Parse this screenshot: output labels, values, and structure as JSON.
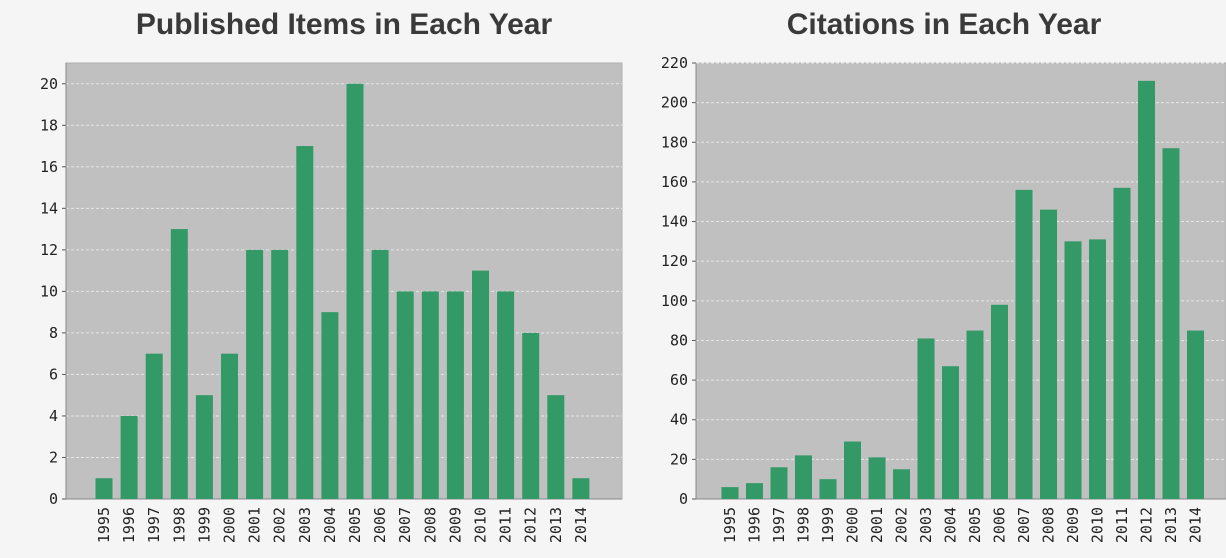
{
  "chart_data": [
    {
      "type": "bar",
      "title": "Published Items in Each Year",
      "xlabel": "",
      "ylabel": "",
      "categories": [
        "1995",
        "1996",
        "1997",
        "1998",
        "1999",
        "2000",
        "2001",
        "2002",
        "2003",
        "2004",
        "2005",
        "2006",
        "2007",
        "2008",
        "2009",
        "2010",
        "2011",
        "2012",
        "2013",
        "2014"
      ],
      "values": [
        1,
        4,
        7,
        13,
        5,
        7,
        12,
        12,
        17,
        9,
        20,
        12,
        10,
        10,
        10,
        11,
        10,
        8,
        5,
        1
      ],
      "ylim": [
        0,
        21
      ],
      "yticks": [
        0,
        2,
        4,
        6,
        8,
        10,
        12,
        14,
        16,
        18,
        20
      ],
      "grid": true,
      "bar_color": "#339966",
      "plot_background": "#c0c0c0"
    },
    {
      "type": "bar",
      "title": "Citations in Each Year",
      "xlabel": "",
      "ylabel": "",
      "categories": [
        "1995",
        "1996",
        "1997",
        "1998",
        "1999",
        "2000",
        "2001",
        "2002",
        "2003",
        "2004",
        "2005",
        "2006",
        "2007",
        "2008",
        "2009",
        "2010",
        "2011",
        "2012",
        "2013",
        "2014"
      ],
      "values": [
        6,
        8,
        16,
        22,
        10,
        29,
        21,
        15,
        81,
        67,
        85,
        98,
        156,
        146,
        130,
        131,
        157,
        211,
        177,
        85
      ],
      "ylim": [
        0,
        220
      ],
      "yticks": [
        0,
        20,
        40,
        60,
        80,
        100,
        120,
        140,
        160,
        180,
        200,
        220
      ],
      "grid": true,
      "bar_color": "#339966",
      "plot_background": "#c0c0c0"
    }
  ]
}
